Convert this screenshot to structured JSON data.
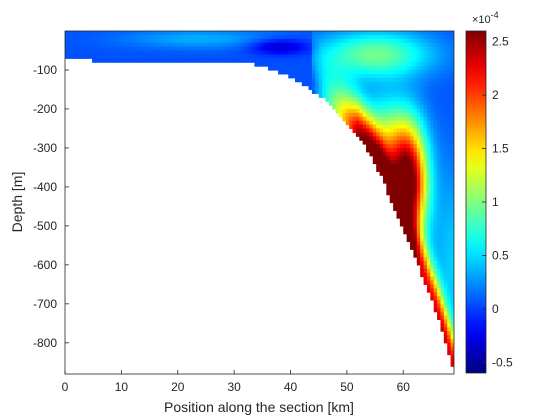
{
  "chart_data": {
    "type": "heatmap",
    "title": "",
    "xlabel": "Position along the section [km]",
    "ylabel": "Depth [m]",
    "xlim": [
      0,
      69
    ],
    "ylim": [
      -880,
      0
    ],
    "x_ticks": [
      0,
      10,
      20,
      30,
      40,
      50,
      60
    ],
    "x_tick_labels": [
      "0",
      "10",
      "20",
      "30",
      "40",
      "50",
      "60"
    ],
    "y_ticks": [
      -100,
      -200,
      -300,
      -400,
      -500,
      -600,
      -700,
      -800
    ],
    "y_tick_labels": [
      "-100",
      "-200",
      "-300",
      "-400",
      "-500",
      "-600",
      "-700",
      "-800"
    ],
    "grid": false,
    "colormap": "jet",
    "colorbar": {
      "clim": [
        -6e-05,
        0.00026
      ],
      "ticks": [
        -5e-05,
        0,
        5e-05,
        0.0001,
        0.00015,
        0.0002,
        0.00025
      ],
      "tick_labels": [
        "-0.5",
        "0",
        "0.5",
        "1",
        "1.5",
        "2",
        "2.5"
      ],
      "exponent_label": "×10",
      "exponent_power": "-4"
    },
    "bottom_depth_profile": {
      "x": [
        0,
        5,
        10,
        15,
        20,
        25,
        30,
        35,
        38,
        42,
        46,
        50,
        52,
        54,
        56,
        58,
        60,
        62,
        64,
        66,
        69
      ],
      "depth": [
        -70,
        -75,
        -78,
        -78,
        -76,
        -75,
        -78,
        -88,
        -105,
        -135,
        -175,
        -235,
        -270,
        -315,
        -370,
        -440,
        -510,
        -580,
        -650,
        -730,
        -870
      ]
    },
    "features": [
      {
        "x": 61,
        "depth": -400,
        "value": 0.00025
      },
      {
        "x": 57,
        "depth": -300,
        "value": 0.00022
      },
      {
        "x": 62,
        "depth": -620,
        "value": 0.0002
      },
      {
        "x": 38,
        "depth": -40,
        "value": -3e-05
      },
      {
        "x": 24,
        "depth": -20,
        "value": 3e-05
      }
    ]
  }
}
